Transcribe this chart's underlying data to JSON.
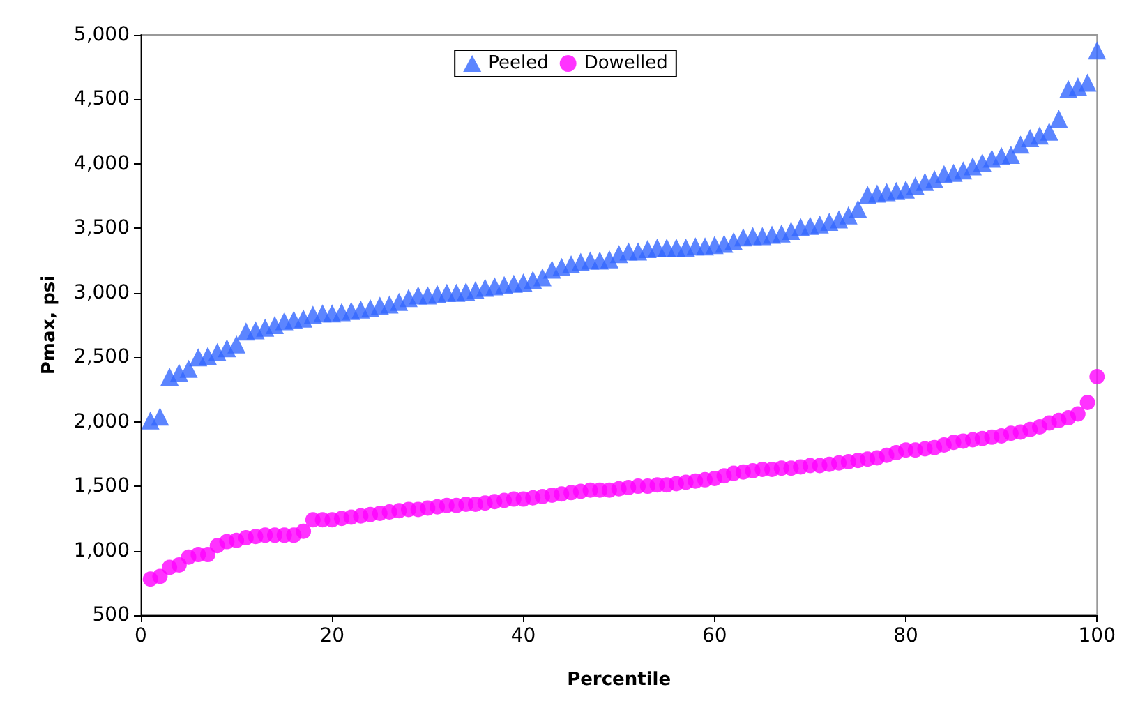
{
  "chart_data": {
    "type": "scatter",
    "xlabel": "Percentile",
    "ylabel": "Pmax, psi",
    "x": [
      1,
      2,
      3,
      4,
      5,
      6,
      7,
      8,
      9,
      10,
      11,
      12,
      13,
      14,
      15,
      16,
      17,
      18,
      19,
      20,
      21,
      22,
      23,
      24,
      25,
      26,
      27,
      28,
      29,
      30,
      31,
      32,
      33,
      34,
      35,
      36,
      37,
      38,
      39,
      40,
      41,
      42,
      43,
      44,
      45,
      46,
      47,
      48,
      49,
      50,
      51,
      52,
      53,
      54,
      55,
      56,
      57,
      58,
      59,
      60,
      61,
      62,
      63,
      64,
      65,
      66,
      67,
      68,
      69,
      70,
      71,
      72,
      73,
      74,
      75,
      76,
      77,
      78,
      79,
      80,
      81,
      82,
      83,
      84,
      85,
      86,
      87,
      88,
      89,
      90,
      91,
      92,
      93,
      94,
      95,
      96,
      97,
      98,
      99,
      100
    ],
    "series": [
      {
        "name": "Peeled",
        "color": "#3366ff",
        "marker": "triangle",
        "values": [
          2010,
          2040,
          2350,
          2380,
          2410,
          2500,
          2510,
          2540,
          2570,
          2600,
          2700,
          2710,
          2730,
          2750,
          2780,
          2790,
          2800,
          2830,
          2840,
          2840,
          2850,
          2860,
          2870,
          2880,
          2900,
          2910,
          2930,
          2960,
          2980,
          2980,
          2990,
          3000,
          3000,
          3010,
          3020,
          3040,
          3050,
          3060,
          3070,
          3080,
          3100,
          3120,
          3180,
          3200,
          3220,
          3240,
          3250,
          3250,
          3260,
          3300,
          3320,
          3320,
          3340,
          3350,
          3350,
          3350,
          3350,
          3360,
          3360,
          3370,
          3380,
          3400,
          3430,
          3440,
          3440,
          3450,
          3460,
          3480,
          3510,
          3520,
          3530,
          3550,
          3570,
          3600,
          3650,
          3760,
          3770,
          3780,
          3790,
          3800,
          3830,
          3860,
          3880,
          3920,
          3930,
          3950,
          3980,
          4010,
          4040,
          4060,
          4070,
          4150,
          4200,
          4220,
          4250,
          4350,
          4580,
          4600,
          4630,
          4880
        ]
      },
      {
        "name": "Dowelled",
        "color": "#ff00ff",
        "marker": "circle",
        "values": [
          780,
          800,
          870,
          890,
          950,
          970,
          970,
          1040,
          1070,
          1080,
          1100,
          1110,
          1120,
          1120,
          1120,
          1120,
          1150,
          1240,
          1240,
          1240,
          1250,
          1260,
          1270,
          1280,
          1290,
          1300,
          1310,
          1320,
          1320,
          1330,
          1340,
          1350,
          1350,
          1360,
          1360,
          1370,
          1380,
          1390,
          1400,
          1400,
          1410,
          1420,
          1430,
          1440,
          1450,
          1460,
          1470,
          1470,
          1470,
          1480,
          1490,
          1500,
          1500,
          1510,
          1510,
          1520,
          1530,
          1540,
          1550,
          1560,
          1580,
          1600,
          1610,
          1620,
          1630,
          1630,
          1640,
          1640,
          1650,
          1660,
          1660,
          1670,
          1680,
          1690,
          1700,
          1710,
          1720,
          1740,
          1760,
          1780,
          1780,
          1790,
          1800,
          1820,
          1840,
          1850,
          1860,
          1870,
          1880,
          1890,
          1910,
          1920,
          1940,
          1960,
          1990,
          2010,
          2030,
          2060,
          2150,
          2350
        ]
      }
    ],
    "xlim": [
      0,
      100
    ],
    "xticks": [
      0,
      20,
      40,
      60,
      80,
      100
    ],
    "ylim": [
      500,
      5000
    ],
    "yticks": [
      500,
      {
        "value": 1000,
        "label": "1,000"
      },
      {
        "value": 1500,
        "label": "1,500"
      },
      {
        "value": 2000,
        "label": "2,000"
      },
      {
        "value": 2500,
        "label": "2,500"
      },
      {
        "value": 3000,
        "label": "3,000"
      },
      {
        "value": 3500,
        "label": "3,500"
      },
      {
        "value": 4000,
        "label": "4,000"
      },
      {
        "value": 4500,
        "label": "4,500"
      },
      {
        "value": 5000,
        "label": "5,000"
      }
    ],
    "grid": false,
    "legend": "top"
  }
}
